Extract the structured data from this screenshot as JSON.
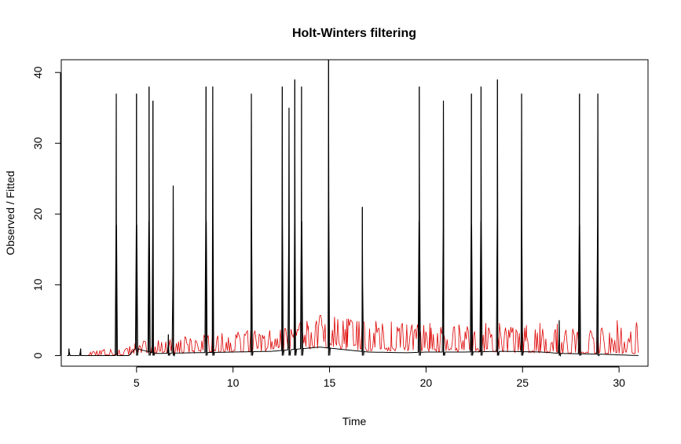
{
  "chart_data": {
    "type": "line",
    "title": "Holt-Winters filtering",
    "xlabel": "Time",
    "ylabel": "Observed / Fitted",
    "xlim": [
      1.1,
      31.5
    ],
    "ylim": [
      -1.5,
      41.8
    ],
    "x_ticks": [
      5,
      10,
      15,
      20,
      25,
      30
    ],
    "y_ticks": [
      0,
      10,
      20,
      30,
      40
    ],
    "grid": false,
    "legend": "none",
    "series": [
      {
        "color": "#000000",
        "spikes": [
          [
            1.5,
            1
          ],
          [
            2.1,
            1
          ],
          [
            3.95,
            37
          ],
          [
            5.0,
            37
          ],
          [
            5.65,
            38
          ],
          [
            5.85,
            36
          ],
          [
            6.65,
            3
          ],
          [
            6.9,
            24
          ],
          [
            8.6,
            38
          ],
          [
            8.95,
            38
          ],
          [
            10.95,
            37
          ],
          [
            12.55,
            38
          ],
          [
            12.9,
            35
          ],
          [
            13.2,
            39
          ],
          [
            13.55,
            38
          ],
          [
            14.95,
            42
          ],
          [
            16.7,
            21
          ],
          [
            19.65,
            38
          ],
          [
            20.9,
            36
          ],
          [
            22.35,
            37
          ],
          [
            22.85,
            38
          ],
          [
            23.7,
            39
          ],
          [
            24.95,
            37
          ],
          [
            26.9,
            5
          ],
          [
            27.95,
            37
          ],
          [
            28.9,
            37
          ]
        ],
        "baseline_values": [
          [
            1.1,
            0
          ],
          [
            4.6,
            0
          ],
          [
            4.95,
            1
          ],
          [
            6.0,
            0.3
          ],
          [
            8.0,
            0.4
          ],
          [
            10.0,
            0.5
          ],
          [
            12.0,
            0.6
          ],
          [
            14.5,
            1.2
          ],
          [
            15.2,
            1.0
          ],
          [
            17.0,
            0.5
          ],
          [
            19.0,
            0.4
          ],
          [
            20.0,
            0.5
          ],
          [
            22.0,
            0.5
          ],
          [
            24.0,
            0.6
          ],
          [
            26.0,
            0.5
          ],
          [
            27.0,
            0.3
          ],
          [
            29.0,
            0.2
          ],
          [
            31.0,
            0
          ]
        ]
      },
      {
        "color": "#dd0000",
        "x_start": 2.5,
        "x_end": 31.0,
        "level": [
          [
            2.5,
            0.1
          ],
          [
            4.8,
            0.2
          ],
          [
            5.0,
            0.8
          ],
          [
            6.5,
            0.6
          ],
          [
            8.0,
            0.8
          ],
          [
            10.0,
            1.0
          ],
          [
            12.0,
            1.2
          ],
          [
            13.0,
            1.5
          ],
          [
            14.0,
            1.9
          ],
          [
            15.0,
            2.3
          ],
          [
            15.5,
            1.8
          ],
          [
            17.0,
            1.4
          ],
          [
            19.0,
            1.3
          ],
          [
            20.0,
            1.2
          ],
          [
            22.0,
            1.0
          ],
          [
            24.0,
            1.0
          ],
          [
            26.0,
            0.8
          ],
          [
            27.0,
            0.6
          ],
          [
            29.0,
            0.6
          ],
          [
            31.0,
            0.6
          ]
        ],
        "peak_height": [
          [
            2.5,
            0.4
          ],
          [
            5.0,
            1.0
          ],
          [
            7.0,
            1.4
          ],
          [
            9.0,
            1.7
          ],
          [
            12.0,
            2.0
          ],
          [
            14.5,
            2.8
          ],
          [
            16.0,
            3.0
          ],
          [
            18.0,
            2.6
          ],
          [
            20.0,
            2.4
          ],
          [
            22.0,
            2.4
          ],
          [
            24.0,
            2.5
          ],
          [
            26.0,
            2.5
          ],
          [
            28.0,
            2.4
          ],
          [
            30.0,
            2.8
          ],
          [
            31.0,
            3.0
          ]
        ],
        "highlights": [
          [
            15.9,
            5.2
          ],
          [
            16.2,
            4.2
          ],
          [
            17.4,
            4.8
          ],
          [
            18.2,
            4.8
          ],
          [
            19.0,
            4.4
          ],
          [
            20.2,
            4.6
          ],
          [
            21.7,
            4.4
          ],
          [
            23.1,
            4.6
          ],
          [
            23.8,
            4.6
          ],
          [
            25.2,
            4.3
          ],
          [
            25.9,
            4.6
          ],
          [
            26.8,
            4.5
          ],
          [
            27.6,
            3.8
          ],
          [
            29.9,
            5.0
          ],
          [
            30.9,
            4.7
          ],
          [
            13.9,
            4.2
          ],
          [
            14.6,
            4.3
          ]
        ]
      }
    ]
  }
}
